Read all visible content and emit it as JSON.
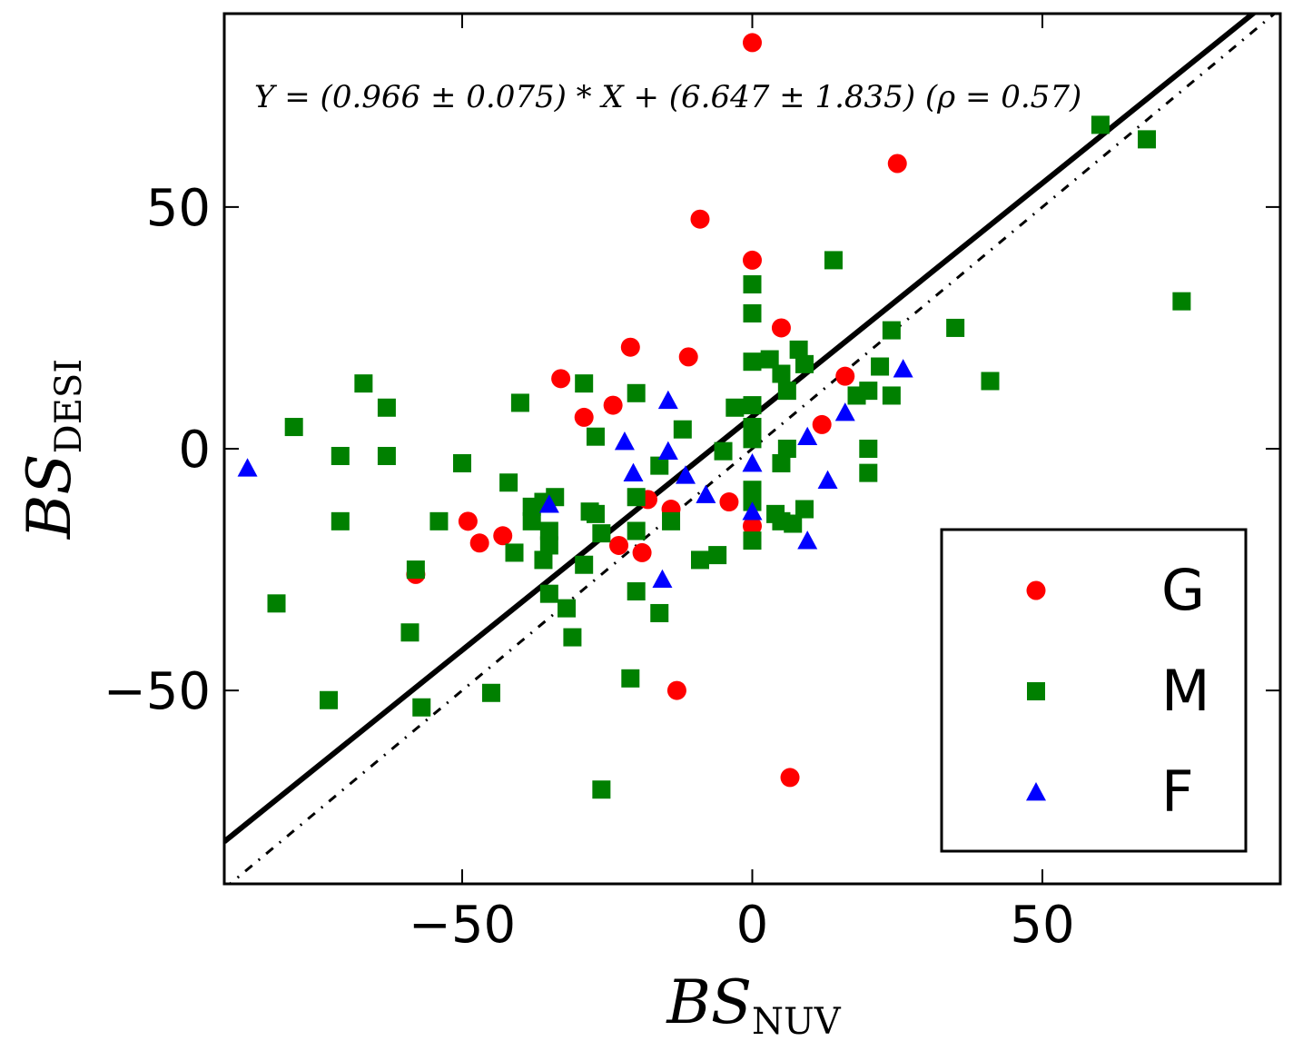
{
  "chart_data": {
    "type": "scatter",
    "xlabel": "BS",
    "xlabel_sub": "NUV",
    "ylabel": "BS",
    "ylabel_sub": "DESI",
    "xlim": [
      -91,
      91
    ],
    "ylim": [
      -90,
      90
    ],
    "xticks": [
      -50,
      0,
      50
    ],
    "yticks": [
      -50,
      0,
      50
    ],
    "xtick_labels": [
      "−50",
      "0",
      "50"
    ],
    "ytick_labels": [
      "−50",
      "0",
      "50"
    ],
    "annotation": "Y = (0.966 ± 0.075) * X + (6.647 ± 1.835) (ρ = 0.57)",
    "fit_line": {
      "slope": 0.966,
      "intercept": 6.647,
      "style": "solid",
      "color": "#000000"
    },
    "reference_line": {
      "slope": 1,
      "intercept": 0,
      "style": "dash-dot",
      "color": "#000000"
    },
    "legend": {
      "position": "bottom-right",
      "entries": [
        "G",
        "M",
        "F"
      ]
    },
    "series": [
      {
        "name": "G",
        "marker": "circle",
        "color": "#ff0000",
        "points": [
          [
            0,
            84
          ],
          [
            25,
            59
          ],
          [
            -9,
            47.5
          ],
          [
            0,
            39
          ],
          [
            5,
            25
          ],
          [
            -21,
            21
          ],
          [
            -11,
            19
          ],
          [
            -33,
            14.5
          ],
          [
            16,
            15
          ],
          [
            -24,
            9
          ],
          [
            -29,
            6.5
          ],
          [
            12,
            5
          ],
          [
            0,
            -16
          ],
          [
            -4,
            -11
          ],
          [
            -14,
            -12.5
          ],
          [
            -18,
            -10.5
          ],
          [
            -49,
            -15
          ],
          [
            -47,
            -19.5
          ],
          [
            -43,
            -18
          ],
          [
            -23,
            -20
          ],
          [
            -19,
            -21.5
          ],
          [
            -58,
            -26
          ],
          [
            -13,
            -50
          ],
          [
            6.5,
            -68
          ]
        ]
      },
      {
        "name": "M",
        "marker": "square",
        "color": "#008000",
        "points": [
          [
            60,
            67
          ],
          [
            68,
            64
          ],
          [
            74,
            30.5
          ],
          [
            14,
            39
          ],
          [
            0,
            34
          ],
          [
            0,
            28
          ],
          [
            35,
            25
          ],
          [
            24,
            24.5
          ],
          [
            8,
            20.5
          ],
          [
            3,
            18.5
          ],
          [
            0,
            18
          ],
          [
            9,
            17.5
          ],
          [
            5,
            15.5
          ],
          [
            22,
            17
          ],
          [
            41,
            14
          ],
          [
            20,
            12
          ],
          [
            18,
            11
          ],
          [
            24,
            11
          ],
          [
            6,
            12
          ],
          [
            -20,
            11.5
          ],
          [
            -29,
            13.5
          ],
          [
            -67,
            13.5
          ],
          [
            -63,
            8.5
          ],
          [
            -40,
            9.5
          ],
          [
            -3,
            8.5
          ],
          [
            0,
            9
          ],
          [
            -12,
            4
          ],
          [
            0,
            4.5
          ],
          [
            0,
            2
          ],
          [
            -79,
            4.5
          ],
          [
            -27,
            2.5
          ],
          [
            -71,
            -1.5
          ],
          [
            -63,
            -1.5
          ],
          [
            -5,
            -0.5
          ],
          [
            6,
            0
          ],
          [
            20,
            0
          ],
          [
            -50,
            -3
          ],
          [
            -16,
            -3.5
          ],
          [
            5,
            -3
          ],
          [
            20,
            -5
          ],
          [
            -42,
            -7
          ],
          [
            -34,
            -10
          ],
          [
            0,
            -8.5
          ],
          [
            -20,
            -10
          ],
          [
            -36,
            -11
          ],
          [
            -38,
            -12
          ],
          [
            0,
            -11
          ],
          [
            -28,
            -13
          ],
          [
            9,
            -12.5
          ],
          [
            -27,
            -13.5
          ],
          [
            4,
            -13.5
          ],
          [
            -38,
            -15
          ],
          [
            -71,
            -15
          ],
          [
            -54,
            -15
          ],
          [
            -14,
            -15
          ],
          [
            5,
            -15
          ],
          [
            7,
            -15.5
          ],
          [
            -35,
            -17
          ],
          [
            -26,
            -17.5
          ],
          [
            -20,
            -17
          ],
          [
            0,
            -19
          ],
          [
            -35,
            -20
          ],
          [
            -41,
            -21.5
          ],
          [
            -6,
            -22
          ],
          [
            -9,
            -23
          ],
          [
            -36,
            -23
          ],
          [
            -58,
            -25
          ],
          [
            -29,
            -24
          ],
          [
            -35,
            -30
          ],
          [
            -20,
            -29.5
          ],
          [
            -82,
            -32
          ],
          [
            -32,
            -33
          ],
          [
            -16,
            -34
          ],
          [
            -31,
            -39
          ],
          [
            -59,
            -38
          ],
          [
            -21,
            -47.5
          ],
          [
            -73,
            -52
          ],
          [
            -45,
            -50.5
          ],
          [
            -57,
            -53.5
          ],
          [
            -26,
            -70.5
          ]
        ]
      },
      {
        "name": "F",
        "marker": "triangle",
        "color": "#0000ff",
        "points": [
          [
            26,
            16.5
          ],
          [
            -14.5,
            10
          ],
          [
            16,
            7.5
          ],
          [
            9.5,
            2.5
          ],
          [
            -22,
            1.5
          ],
          [
            -14.5,
            -0.5
          ],
          [
            0,
            -3
          ],
          [
            -20.5,
            -5
          ],
          [
            -11.5,
            -5.5
          ],
          [
            13,
            -6.5
          ],
          [
            -8,
            -9.5
          ],
          [
            -35,
            -11.5
          ],
          [
            0,
            -13
          ],
          [
            9.5,
            -19
          ],
          [
            -15.5,
            -27
          ],
          [
            -87,
            -4
          ]
        ]
      }
    ]
  }
}
